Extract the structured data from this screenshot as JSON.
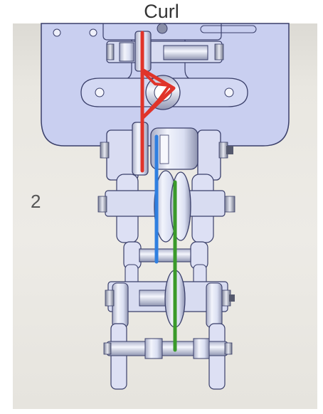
{
  "title": "Curl",
  "step_label": "2",
  "colors": {
    "background": "#ffffff",
    "viewport": "#e9e7e1",
    "plate": "#c9cff0",
    "plate_edge": "#3a3f6a",
    "metal": "#dfe3f5",
    "tendon_red": "#e0342a",
    "tendon_blue": "#2f7fe0",
    "tendon_green": "#3a9a2a"
  },
  "parts": [
    "base-plate",
    "top-pulley",
    "pivot-hole",
    "red-tendon",
    "knuckle-joint-1",
    "finger-link-1",
    "blue-tendon",
    "green-tendon",
    "finger-link-2",
    "finger-link-3",
    "fingertip-link"
  ]
}
